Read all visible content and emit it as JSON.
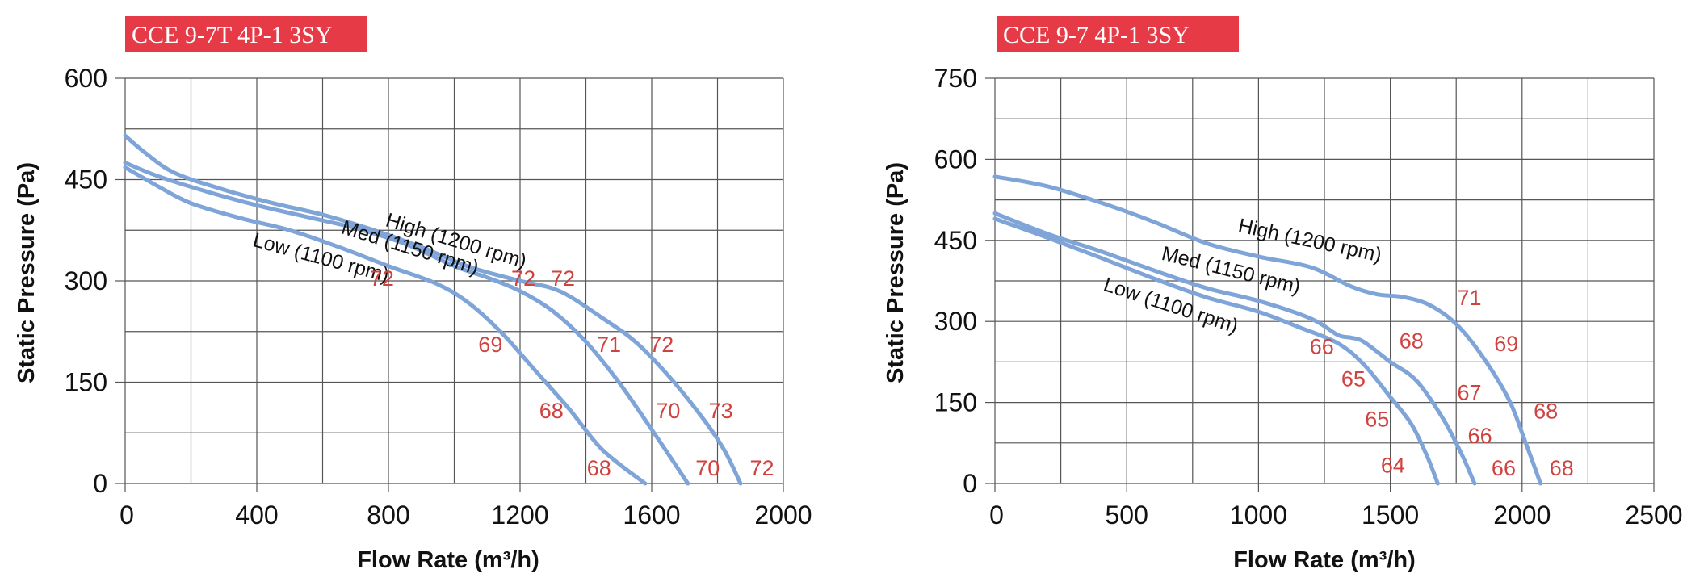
{
  "colors": {
    "curve": "#7fa4d8",
    "label_red": "#d0423f",
    "title_bg": "#e63a46",
    "grid": "#555555",
    "text": "#111111"
  },
  "chart_data": [
    {
      "type": "line",
      "title": "CCE 9-7T 4P-1 3SY",
      "xlabel": "Flow Rate (m³/h)",
      "ylabel": "Static Pressure (Pa)",
      "xlim": [
        0,
        2000
      ],
      "ylim": [
        0,
        600
      ],
      "x_ticks": [
        0,
        400,
        800,
        1200,
        1600,
        2000
      ],
      "x_grid_step": 200,
      "y_ticks": [
        0,
        150,
        300,
        450,
        600
      ],
      "y_grid_step": 75,
      "grid": true,
      "series": [
        {
          "name": "High (1200 rpm)",
          "points": [
            [
              0,
              515
            ],
            [
              60,
              490
            ],
            [
              150,
              460
            ],
            [
              300,
              435
            ],
            [
              450,
              415
            ],
            [
              600,
              398
            ],
            [
              750,
              376
            ],
            [
              900,
              350
            ],
            [
              1050,
              320
            ],
            [
              1200,
              300
            ],
            [
              1320,
              285
            ],
            [
              1450,
              245
            ],
            [
              1550,
              210
            ],
            [
              1650,
              160
            ],
            [
              1750,
              100
            ],
            [
              1820,
              50
            ],
            [
              1870,
              0
            ]
          ]
        },
        {
          "name": "Med (1150 rpm)",
          "points": [
            [
              0,
              475
            ],
            [
              100,
              455
            ],
            [
              250,
              432
            ],
            [
              400,
              412
            ],
            [
              550,
              395
            ],
            [
              700,
              378
            ],
            [
              850,
              355
            ],
            [
              1000,
              322
            ],
            [
              1100,
              305
            ],
            [
              1200,
              285
            ],
            [
              1300,
              255
            ],
            [
              1400,
              210
            ],
            [
              1500,
              150
            ],
            [
              1600,
              80
            ],
            [
              1710,
              0
            ]
          ]
        },
        {
          "name": "Low (1100 rpm)",
          "points": [
            [
              0,
              468
            ],
            [
              100,
              440
            ],
            [
              200,
              415
            ],
            [
              350,
              393
            ],
            [
              500,
              375
            ],
            [
              650,
              350
            ],
            [
              800,
              322
            ],
            [
              950,
              295
            ],
            [
              1050,
              265
            ],
            [
              1150,
              220
            ],
            [
              1250,
              165
            ],
            [
              1350,
              110
            ],
            [
              1450,
              50
            ],
            [
              1580,
              0
            ]
          ]
        }
      ],
      "curve_labels": [
        {
          "text": "High (1200 rpm)",
          "x": 1000,
          "y": 350,
          "angle": 17
        },
        {
          "text": "Med (1150 rpm)",
          "x": 860,
          "y": 340,
          "angle": 17
        },
        {
          "text": "Low (1100 rpm)",
          "x": 590,
          "y": 325,
          "angle": 15
        }
      ],
      "annotations": [
        {
          "text": "72",
          "x": 780,
          "y": 293
        },
        {
          "text": "72",
          "x": 1210,
          "y": 293
        },
        {
          "text": "72",
          "x": 1330,
          "y": 293
        },
        {
          "text": "69",
          "x": 1110,
          "y": 195
        },
        {
          "text": "71",
          "x": 1470,
          "y": 195
        },
        {
          "text": "72",
          "x": 1630,
          "y": 195
        },
        {
          "text": "68",
          "x": 1295,
          "y": 97
        },
        {
          "text": "70",
          "x": 1650,
          "y": 97
        },
        {
          "text": "73",
          "x": 1810,
          "y": 97
        },
        {
          "text": "68",
          "x": 1440,
          "y": 12
        },
        {
          "text": "70",
          "x": 1770,
          "y": 12
        },
        {
          "text": "72",
          "x": 1935,
          "y": 12
        }
      ]
    },
    {
      "type": "line",
      "title": "CCE 9-7 4P-1 3SY",
      "xlabel": "Flow Rate (m³/h)",
      "ylabel": "Static Pressure (Pa)",
      "xlim": [
        0,
        2500
      ],
      "ylim": [
        0,
        750
      ],
      "x_ticks": [
        0,
        500,
        1000,
        1500,
        2000,
        2500
      ],
      "x_grid_step": 250,
      "y_ticks": [
        0,
        150,
        300,
        450,
        600,
        750
      ],
      "y_grid_step": 75,
      "grid": true,
      "series": [
        {
          "name": "High (1200 rpm)",
          "points": [
            [
              0,
              568
            ],
            [
              200,
              550
            ],
            [
              400,
              520
            ],
            [
              600,
              485
            ],
            [
              800,
              445
            ],
            [
              1000,
              420
            ],
            [
              1200,
              400
            ],
            [
              1350,
              365
            ],
            [
              1450,
              350
            ],
            [
              1550,
              345
            ],
            [
              1650,
              330
            ],
            [
              1750,
              295
            ],
            [
              1850,
              235
            ],
            [
              1950,
              155
            ],
            [
              2010,
              80
            ],
            [
              2070,
              0
            ]
          ]
        },
        {
          "name": "Med (1150 rpm)",
          "points": [
            [
              0,
              500
            ],
            [
              200,
              462
            ],
            [
              400,
              430
            ],
            [
              600,
              395
            ],
            [
              800,
              362
            ],
            [
              1000,
              338
            ],
            [
              1200,
              305
            ],
            [
              1300,
              275
            ],
            [
              1350,
              270
            ],
            [
              1400,
              262
            ],
            [
              1500,
              225
            ],
            [
              1600,
              190
            ],
            [
              1700,
              120
            ],
            [
              1770,
              55
            ],
            [
              1820,
              0
            ]
          ]
        },
        {
          "name": "Low (1100 rpm)",
          "points": [
            [
              0,
              490
            ],
            [
              200,
              455
            ],
            [
              400,
              418
            ],
            [
              600,
              380
            ],
            [
              800,
              345
            ],
            [
              1000,
              318
            ],
            [
              1150,
              290
            ],
            [
              1300,
              260
            ],
            [
              1400,
              220
            ],
            [
              1500,
              160
            ],
            [
              1580,
              110
            ],
            [
              1640,
              50
            ],
            [
              1680,
              0
            ]
          ]
        }
      ],
      "curve_labels": [
        {
          "text": "High (1200 rpm)",
          "x": 1190,
          "y": 438,
          "angle": 12
        },
        {
          "text": "Med (1150 rpm)",
          "x": 890,
          "y": 383,
          "angle": 14
        },
        {
          "text": "Low (1100 rpm)",
          "x": 660,
          "y": 318,
          "angle": 18
        }
      ],
      "annotations": [
        {
          "text": "71",
          "x": 1800,
          "y": 330
        },
        {
          "text": "66",
          "x": 1240,
          "y": 240
        },
        {
          "text": "68",
          "x": 1580,
          "y": 250
        },
        {
          "text": "69",
          "x": 1940,
          "y": 245
        },
        {
          "text": "65",
          "x": 1360,
          "y": 180
        },
        {
          "text": "67",
          "x": 1800,
          "y": 155
        },
        {
          "text": "65",
          "x": 1450,
          "y": 105
        },
        {
          "text": "68",
          "x": 2090,
          "y": 120
        },
        {
          "text": "66",
          "x": 1840,
          "y": 75
        },
        {
          "text": "64",
          "x": 1510,
          "y": 20
        },
        {
          "text": "66",
          "x": 1930,
          "y": 15
        },
        {
          "text": "68",
          "x": 2150,
          "y": 15
        }
      ]
    }
  ]
}
